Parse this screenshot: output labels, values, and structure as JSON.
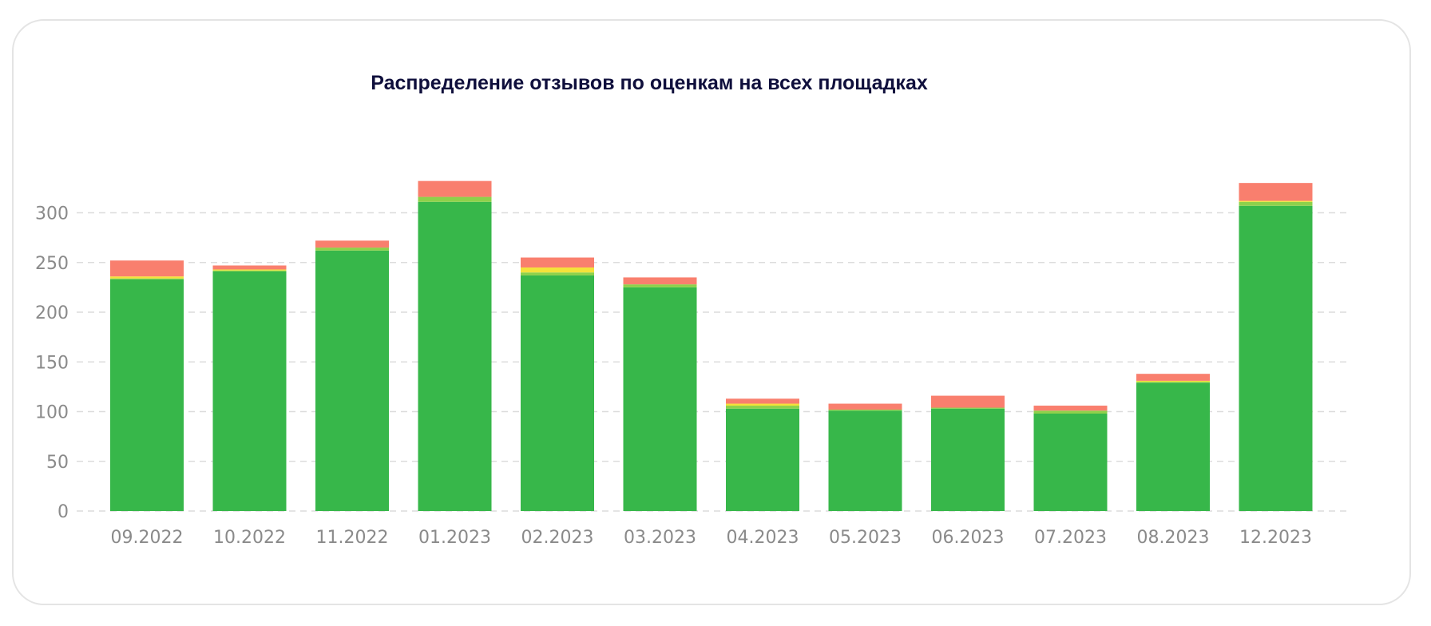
{
  "chart_data": {
    "type": "bar",
    "stacked": true,
    "title": "Распределение отзывов по оценкам на всех площадках",
    "xlabel": "",
    "ylabel": "",
    "ylim": [
      0,
      340
    ],
    "yticks": [
      0,
      50,
      100,
      150,
      200,
      250,
      300
    ],
    "grid": true,
    "legend": "none",
    "categories": [
      "09.2022",
      "10.2022",
      "11.2022",
      "01.2023",
      "02.2023",
      "03.2023",
      "04.2023",
      "05.2023",
      "06.2023",
      "07.2023",
      "08.2023",
      "12.2023"
    ],
    "series": [
      {
        "color": "#37b74a",
        "values": [
          233,
          241,
          262,
          311,
          237,
          225,
          103,
          101,
          103,
          98,
          129,
          307
        ]
      },
      {
        "color": "#8ed14b",
        "values": [
          1,
          1,
          3,
          5,
          3,
          3,
          3,
          1,
          1,
          3,
          1,
          4
        ]
      },
      {
        "color": "#f4e23a",
        "values": [
          2,
          1,
          0,
          0,
          5,
          0,
          2,
          0,
          0,
          0,
          1,
          1
        ]
      },
      {
        "color": "#fbb547",
        "values": [
          0,
          0,
          0,
          0,
          0,
          0,
          0,
          0,
          0,
          0,
          0,
          0
        ]
      },
      {
        "color": "#f97f6e",
        "values": [
          16,
          4,
          7,
          16,
          10,
          7,
          5,
          6,
          12,
          5,
          7,
          18
        ]
      }
    ]
  }
}
